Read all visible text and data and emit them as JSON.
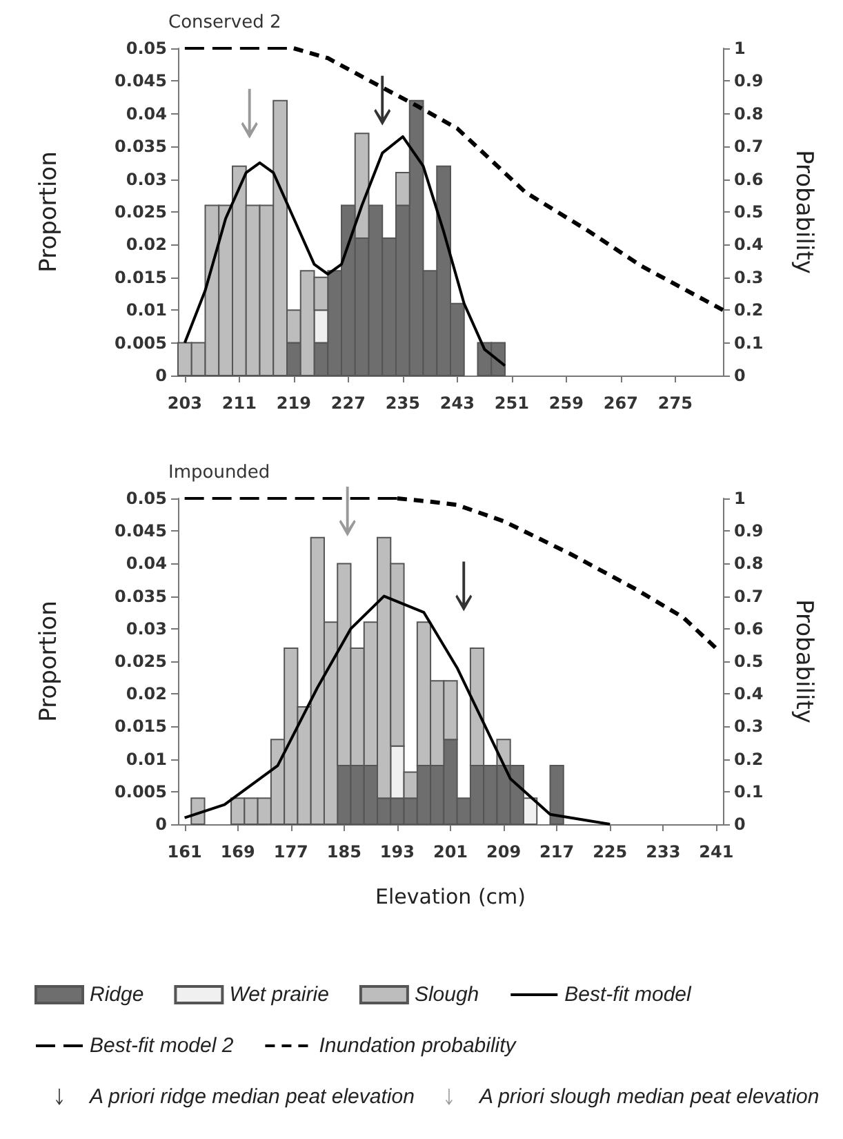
{
  "chart_data": [
    {
      "type": "bar",
      "title": "Conserved 2",
      "ylabel": "Proportion",
      "y2label": "Probability",
      "stacked": true,
      "legend": false,
      "grid": false,
      "x": [
        203,
        205,
        207,
        209,
        211,
        213,
        215,
        217,
        219,
        221,
        223,
        225,
        227,
        229,
        231,
        233,
        235,
        237,
        239,
        241,
        243,
        245,
        247,
        249
      ],
      "xlim": [
        202,
        282
      ],
      "xticks": [
        203,
        211,
        219,
        227,
        235,
        243,
        251,
        259,
        267,
        275
      ],
      "ylim": [
        0,
        0.05
      ],
      "yticks": [
        0,
        0.005,
        0.01,
        0.015,
        0.02,
        0.025,
        0.03,
        0.035,
        0.04,
        0.045,
        0.05
      ],
      "y2lim": [
        0,
        1
      ],
      "y2ticks": [
        0,
        0.1,
        0.2,
        0.3,
        0.4,
        0.5,
        0.6,
        0.7,
        0.8,
        0.9,
        1
      ],
      "series": [
        {
          "color": "#6e6e6e",
          "values": [
            null,
            null,
            null,
            null,
            null,
            null,
            null,
            null,
            0.005,
            null,
            0.005,
            0.016,
            0.026,
            0.021,
            0.026,
            0.021,
            0.026,
            0.042,
            0.016,
            0.032,
            0.011,
            null,
            0.005,
            0.005
          ]
        },
        {
          "color": "#f0f0f0",
          "values": [
            null,
            null,
            null,
            null,
            null,
            null,
            null,
            null,
            null,
            null,
            0.005,
            null,
            null,
            null,
            null,
            null,
            null,
            null,
            null,
            null,
            null,
            null,
            null,
            null
          ]
        },
        {
          "color": "#bdbdbd",
          "values": [
            0.005,
            0.005,
            0.026,
            0.026,
            0.032,
            0.026,
            0.026,
            0.042,
            0.005,
            0.016,
            0.005,
            null,
            null,
            0.016,
            null,
            null,
            0.005,
            null,
            null,
            null,
            null,
            null,
            null,
            null
          ]
        },
        {
          "type": "line",
          "color": "#000000",
          "line_style": "solid",
          "x": [
            203,
            206,
            209,
            212,
            214,
            216,
            219,
            222,
            224,
            226,
            229,
            232,
            235,
            238,
            241,
            244,
            247,
            250
          ],
          "values": [
            0.005,
            0.013,
            0.024,
            0.031,
            0.0325,
            0.031,
            0.024,
            0.017,
            0.0155,
            0.017,
            0.026,
            0.034,
            0.0365,
            0.032,
            0.022,
            0.011,
            0.004,
            0.0015
          ]
        },
        {
          "type": "line",
          "color": "#000000",
          "line_style": "dashed",
          "axis": "y2",
          "x": [
            203,
            219
          ],
          "values": [
            1,
            1
          ]
        },
        {
          "type": "line",
          "color": "#000000",
          "line_style": "dotted",
          "axis": "y2",
          "x": [
            219,
            224,
            232,
            237,
            243,
            253,
            262,
            270,
            282
          ],
          "values": [
            1,
            0.97,
            0.88,
            0.825,
            0.755,
            0.56,
            0.445,
            0.335,
            0.2
          ]
        },
        {
          "type": "scatter",
          "color": "#000000",
          "x": [
            232
          ],
          "values": [
            0.042
          ]
        },
        {
          "type": "scatter",
          "color": "#808080",
          "x": [
            212.5
          ],
          "values": [
            0.04
          ]
        }
      ]
    },
    {
      "type": "bar",
      "title": "Impounded",
      "xlabel": "Elevation (cm)",
      "ylabel": "Proportion",
      "y2label": "Probability",
      "stacked": true,
      "legend": "bottom",
      "grid": false,
      "x": [
        163,
        165,
        167,
        169,
        171,
        173,
        175,
        177,
        179,
        181,
        183,
        185,
        187,
        189,
        191,
        193,
        195,
        197,
        199,
        201,
        203,
        205,
        207,
        209,
        211,
        213,
        215,
        217
      ],
      "xlim": [
        160,
        242
      ],
      "xticks": [
        161,
        169,
        177,
        185,
        193,
        201,
        209,
        217,
        225,
        233,
        241
      ],
      "ylim": [
        0,
        0.05
      ],
      "yticks": [
        0,
        0.005,
        0.01,
        0.015,
        0.02,
        0.025,
        0.03,
        0.035,
        0.04,
        0.045,
        0.05
      ],
      "y2lim": [
        0,
        1
      ],
      "y2ticks": [
        0,
        0.1,
        0.2,
        0.3,
        0.4,
        0.5,
        0.6,
        0.7,
        0.8,
        0.9,
        1
      ],
      "series": [
        {
          "name": "Ridge",
          "color": "#6e6e6e",
          "values": [
            null,
            null,
            null,
            null,
            null,
            null,
            null,
            null,
            null,
            null,
            null,
            0.009,
            0.009,
            0.009,
            0.004,
            0.004,
            0.004,
            0.009,
            0.009,
            0.013,
            0.004,
            0.009,
            0.009,
            0.009,
            0.009,
            null,
            null,
            0.009
          ]
        },
        {
          "name": "Wet prairie",
          "color": "#f0f0f0",
          "values": [
            null,
            null,
            null,
            null,
            null,
            null,
            null,
            null,
            null,
            null,
            null,
            null,
            null,
            null,
            null,
            0.008,
            null,
            null,
            null,
            null,
            null,
            null,
            null,
            null,
            null,
            0.004,
            null,
            null
          ]
        },
        {
          "name": "Slough",
          "color": "#bdbdbd",
          "values": [
            0.004,
            null,
            null,
            0.004,
            0.004,
            0.004,
            0.013,
            0.027,
            0.018,
            0.044,
            0.031,
            0.031,
            0.018,
            0.022,
            0.04,
            0.028,
            0.004,
            0.022,
            0.013,
            0.009,
            null,
            0.018,
            null,
            0.004,
            null,
            null,
            null,
            null
          ]
        },
        {
          "name": "Best-fit model",
          "type": "line",
          "color": "#000000",
          "line_style": "solid",
          "x": [
            161,
            167,
            175,
            181,
            186,
            191,
            197,
            202,
            206,
            210,
            216,
            225
          ],
          "values": [
            0.001,
            0.003,
            0.009,
            0.021,
            0.03,
            0.035,
            0.0325,
            0.024,
            0.0155,
            0.007,
            0.0015,
            0
          ]
        },
        {
          "name": "Best-fit model 2",
          "type": "line",
          "color": "#000000",
          "line_style": "dashed",
          "axis": "y2",
          "x": [
            161,
            193
          ],
          "values": [
            1,
            1
          ]
        },
        {
          "name": "Inundation probability",
          "type": "line",
          "color": "#000000",
          "line_style": "dotted",
          "axis": "y2",
          "x": [
            193,
            198,
            202,
            209,
            219,
            229,
            236,
            241.5
          ],
          "values": [
            1,
            0.99,
            0.98,
            0.93,
            0.83,
            0.72,
            0.635,
            0.53
          ]
        },
        {
          "name": "A priori ridge median peat elevation",
          "type": "scatter",
          "color": "#000000",
          "x": [
            203
          ],
          "values": [
            0.0365
          ]
        },
        {
          "name": "A priori slough median peat elevation",
          "type": "scatter",
          "color": "#808080",
          "x": [
            185.5
          ],
          "values": [
            0.048
          ]
        }
      ]
    }
  ]
}
